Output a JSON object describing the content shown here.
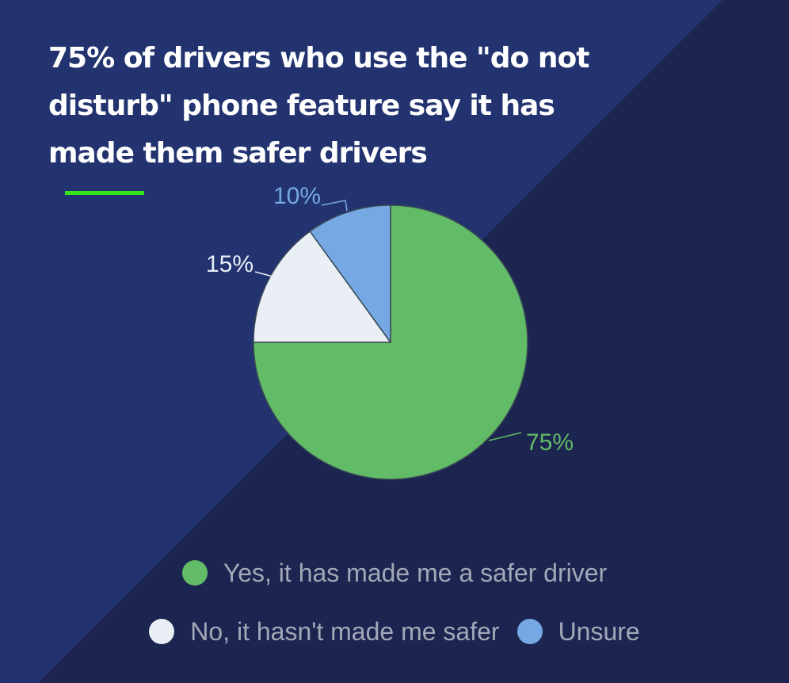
{
  "title": "75% of drivers who use the \"do not disturb\" phone feature say it has made them safer drivers",
  "colors": {
    "background": "#1b2550",
    "background_band": "#22336f",
    "accent_rule": "#39e51c",
    "legend_text": "#a3a8b8",
    "slice_border": "#3a4a55"
  },
  "chart_data": {
    "type": "pie",
    "legend_position": "bottom",
    "slices": [
      {
        "label": "Yes, it has made me a safer driver",
        "value": 75,
        "display": "75%",
        "color": "#62bb66",
        "label_color": "#62bb66"
      },
      {
        "label": "No, it hasn't made me safer",
        "value": 15,
        "display": "15%",
        "color": "#e9eff5",
        "label_color": "#e9eff5"
      },
      {
        "label": "Unsure",
        "value": 10,
        "display": "10%",
        "color": "#76a9e3",
        "label_color": "#76a9e3"
      }
    ]
  }
}
